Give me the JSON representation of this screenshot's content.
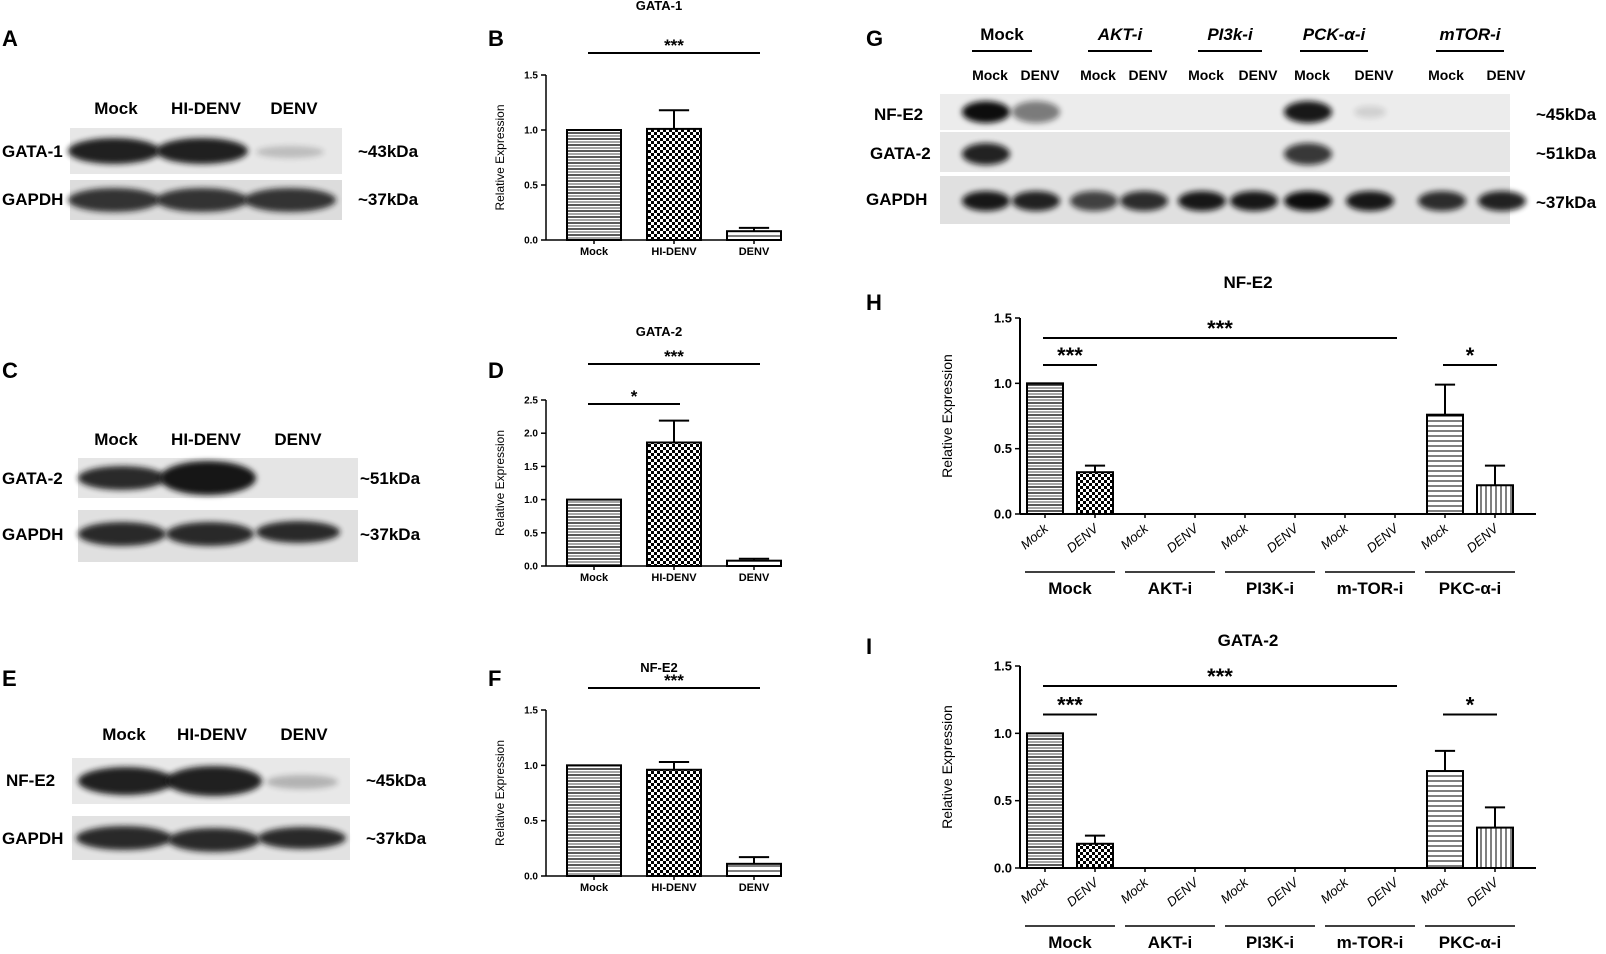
{
  "panel_letters": [
    "A",
    "B",
    "C",
    "D",
    "E",
    "F",
    "G",
    "H",
    "I"
  ],
  "blots": {
    "A": {
      "lanes": [
        "Mock",
        "HI-DENV",
        "DENV"
      ],
      "rows": [
        {
          "name": "GATA-1",
          "kda": "~43kDa",
          "intensity": [
            0.95,
            0.95,
            0.2
          ]
        },
        {
          "name": "GAPDH",
          "kda": "~37kDa",
          "intensity": [
            0.85,
            0.85,
            0.85
          ]
        }
      ]
    },
    "C": {
      "lanes": [
        "Mock",
        "HI-DENV",
        "DENV"
      ],
      "rows": [
        {
          "name": "GATA-2",
          "kda": "~51kDa",
          "intensity": [
            0.9,
            1.0,
            0.0
          ]
        },
        {
          "name": "GAPDH",
          "kda": "~37kDa",
          "intensity": [
            0.9,
            0.9,
            0.9
          ]
        }
      ]
    },
    "E": {
      "lanes": [
        "Mock",
        "HI-DENV",
        "DENV"
      ],
      "rows": [
        {
          "name": "NF-E2",
          "kda": "~45kDa",
          "intensity": [
            0.95,
            0.95,
            0.25
          ]
        },
        {
          "name": "GAPDH",
          "kda": "~37kDa",
          "intensity": [
            0.9,
            0.9,
            0.9
          ]
        }
      ]
    },
    "G": {
      "groups": [
        "Mock",
        "AKT-i",
        "PI3k-i",
        "PCK-α-i",
        "mTOR-i"
      ],
      "lanes": [
        "Mock",
        "DENV",
        "Mock",
        "DENV",
        "Mock",
        "DENV",
        "Mock",
        "DENV",
        "Mock",
        "DENV"
      ],
      "rows": [
        {
          "name": "NF-E2",
          "kda": "~45kDa",
          "intensity": [
            1.0,
            0.5,
            0,
            0,
            0,
            0,
            0.95,
            0.12,
            0,
            0
          ]
        },
        {
          "name": "GATA-2",
          "kda": "~51kDa",
          "intensity": [
            0.9,
            0,
            0,
            0,
            0,
            0,
            0.8,
            0,
            0,
            0
          ]
        },
        {
          "name": "GAPDH",
          "kda": "~37kDa",
          "intensity": [
            0.95,
            0.9,
            0.75,
            0.85,
            0.95,
            0.95,
            1.0,
            0.95,
            0.85,
            0.9
          ]
        }
      ]
    }
  },
  "chart_data": [
    {
      "panel": "B",
      "type": "bar",
      "title": "GATA-1",
      "ylabel": "Relative Expression",
      "categories": [
        "Mock",
        "HI-DENV",
        "DENV"
      ],
      "values": [
        1.0,
        1.01,
        0.08
      ],
      "errors": [
        0,
        0.17,
        0.03
      ],
      "ylim": [
        0,
        1.5
      ],
      "yticks": [
        "0.0",
        "0.5",
        "1.0",
        "1.5"
      ],
      "significance": [
        {
          "from": 0,
          "to": 2,
          "label": "***"
        }
      ]
    },
    {
      "panel": "D",
      "type": "bar",
      "title": "GATA-2",
      "ylabel": "Relative Expression",
      "categories": [
        "Mock",
        "HI-DENV",
        "DENV"
      ],
      "values": [
        1.0,
        1.86,
        0.08
      ],
      "errors": [
        0,
        0.33,
        0.03
      ],
      "ylim": [
        0,
        2.5
      ],
      "yticks": [
        "0.0",
        "0.5",
        "1.0",
        "1.5",
        "2.0",
        "2.5"
      ],
      "significance": [
        {
          "from": 0,
          "to": 1,
          "label": "*"
        },
        {
          "from": 0,
          "to": 2,
          "label": "***"
        }
      ]
    },
    {
      "panel": "F",
      "type": "bar",
      "title": "NF-E2",
      "ylabel": "Relative Expression",
      "categories": [
        "Mock",
        "HI-DENV",
        "DENV"
      ],
      "values": [
        1.0,
        0.96,
        0.11
      ],
      "errors": [
        0,
        0.07,
        0.06
      ],
      "ylim": [
        0,
        1.5
      ],
      "yticks": [
        "0.0",
        "0.5",
        "1.0",
        "1.5"
      ],
      "significance": [
        {
          "from": 0,
          "to": 2,
          "label": "***"
        }
      ]
    },
    {
      "panel": "H",
      "type": "bar",
      "title": "NF-E2",
      "ylabel": "Relative Expression",
      "categories": [
        "Mock",
        "DENV",
        "Mock",
        "DENV",
        "Mock",
        "DENV",
        "Mock",
        "DENV",
        "Mock",
        "DENV"
      ],
      "groups": [
        "Mock",
        "AKT-i",
        "PI3K-i",
        "m-TOR-i",
        "PKC-α-i"
      ],
      "values": [
        1.0,
        0.32,
        0,
        0,
        0,
        0,
        0,
        0,
        0.76,
        0.22
      ],
      "errors": [
        0,
        0.05,
        0,
        0,
        0,
        0,
        0,
        0,
        0.23,
        0.15
      ],
      "ylim": [
        0,
        1.5
      ],
      "yticks": [
        "0.0",
        "0.5",
        "1.0",
        "1.5"
      ],
      "significance": [
        {
          "from": 0,
          "to": 1,
          "label": "***"
        },
        {
          "from": 0,
          "to": 7,
          "label": "***"
        },
        {
          "from": 8,
          "to": 9,
          "label": "*"
        }
      ]
    },
    {
      "panel": "I",
      "type": "bar",
      "title": "GATA-2",
      "ylabel": "Relative Expression",
      "categories": [
        "Mock",
        "DENV",
        "Mock",
        "DENV",
        "Mock",
        "DENV",
        "Mock",
        "DENV",
        "Mock",
        "DENV"
      ],
      "groups": [
        "Mock",
        "AKT-i",
        "PI3K-i",
        "m-TOR-i",
        "PKC-α-i"
      ],
      "values": [
        1.0,
        0.18,
        0,
        0,
        0,
        0,
        0,
        0,
        0.72,
        0.3
      ],
      "errors": [
        0,
        0.06,
        0,
        0,
        0,
        0,
        0,
        0,
        0.15,
        0.15
      ],
      "ylim": [
        0,
        1.5
      ],
      "yticks": [
        "0.0",
        "0.5",
        "1.0",
        "1.5"
      ],
      "significance": [
        {
          "from": 0,
          "to": 1,
          "label": "***"
        },
        {
          "from": 0,
          "to": 7,
          "label": "***"
        },
        {
          "from": 8,
          "to": 9,
          "label": "*"
        }
      ]
    }
  ]
}
